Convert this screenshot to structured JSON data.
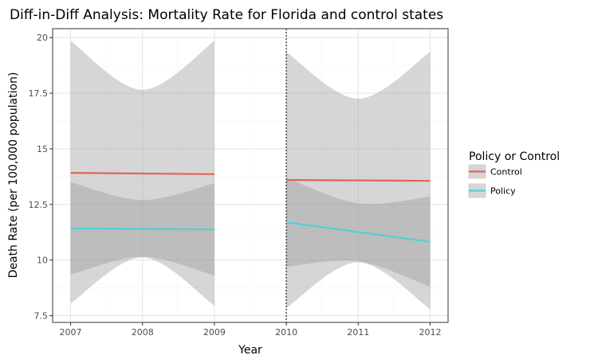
{
  "chart_data": {
    "type": "line",
    "title": "Diff-in-Diff Analysis: Mortality Rate for Florida and control states",
    "xlabel": "Year",
    "ylabel": "Death Rate (per 100,000 population)",
    "xlim": [
      2006.75,
      2012.25
    ],
    "ylim": [
      7.2,
      20.4
    ],
    "x_ticks": [
      2007,
      2008,
      2009,
      2010,
      2011,
      2012
    ],
    "x_tick_labels": [
      "2007",
      "2008",
      "2009",
      "2010",
      "2011",
      "2012"
    ],
    "y_ticks": [
      7.5,
      10,
      12.5,
      15,
      17.5,
      20
    ],
    "y_tick_labels": [
      "7.5",
      "10",
      "12.5",
      "15",
      "17.5",
      "20"
    ],
    "vline_x": 2010,
    "grid": true,
    "legend_position": "right",
    "legend_title": "Policy or Control",
    "series": [
      {
        "name": "Control",
        "color": "#e0645a",
        "segments": [
          {
            "x": [
              2007,
              2008,
              2009
            ],
            "y": [
              13.92,
              13.89,
              13.86
            ],
            "ci_low": [
              8.05,
              10.12,
              7.95
            ],
            "ci_high": [
              19.85,
              17.65,
              19.85
            ]
          },
          {
            "x": [
              2010,
              2011,
              2012
            ],
            "y": [
              13.6,
              13.58,
              13.56
            ],
            "ci_low": [
              7.85,
              9.9,
              7.8
            ],
            "ci_high": [
              19.35,
              17.25,
              19.35
            ]
          }
        ]
      },
      {
        "name": "Policy",
        "color": "#4fd1d6",
        "segments": [
          {
            "x": [
              2007,
              2008,
              2009
            ],
            "y": [
              11.42,
              11.4,
              11.38
            ],
            "ci_low": [
              9.35,
              10.15,
              9.3
            ],
            "ci_high": [
              13.5,
              12.7,
              13.45
            ]
          },
          {
            "x": [
              2010,
              2011,
              2012
            ],
            "y": [
              11.7,
              11.26,
              10.82
            ],
            "ci_low": [
              9.7,
              9.95,
              8.8
            ],
            "ci_high": [
              13.7,
              12.55,
              12.85
            ]
          }
        ]
      }
    ]
  }
}
